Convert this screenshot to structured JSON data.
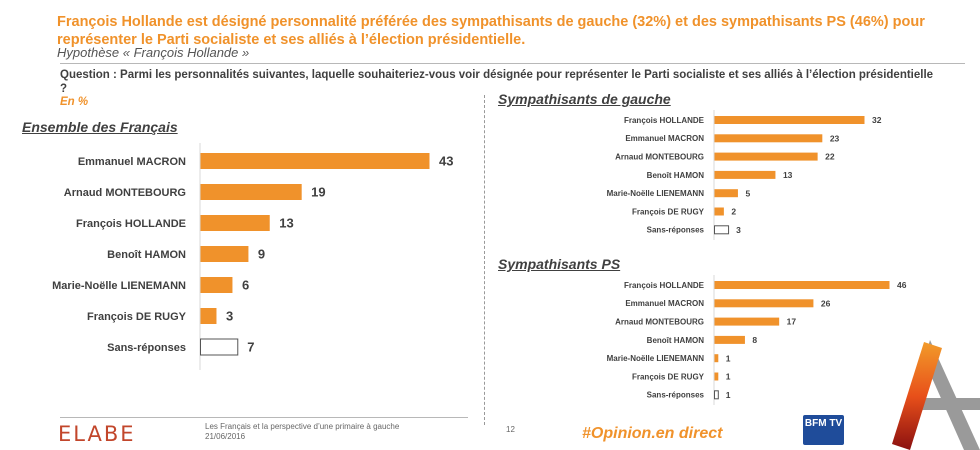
{
  "header": {
    "headline": "François Hollande est désigné personnalité préférée des sympathisants de gauche (32%) et des sympathisants PS (46%) pour représenter le Parti socialiste et ses alliés à l’élection présidentielle.",
    "subtitle": "Hypothèse « François Hollande »",
    "question": "Question : Parmi les personnalités suivantes, laquelle souhaiteriez-vous voir désignée pour représenter le Parti socialiste et ses alliés à l’élection présidentielle ?",
    "unit": "En %"
  },
  "colors": {
    "accent": "#f0922b",
    "text": "#404040",
    "empty_bar": "#ffffff"
  },
  "chart_data": [
    {
      "type": "bar",
      "orientation": "horizontal",
      "title": "Ensemble des Français",
      "categories": [
        "Emmanuel MACRON",
        "Arnaud MONTEBOURG",
        "François HOLLANDE",
        "Benoît HAMON",
        "Marie-Noëlle LIENEMANN",
        "François DE RUGY",
        "Sans-réponses"
      ],
      "values": [
        43,
        19,
        13,
        9,
        6,
        3,
        7
      ],
      "unit": "%"
    },
    {
      "type": "bar",
      "orientation": "horizontal",
      "title": "Sympathisants de gauche",
      "categories": [
        "François HOLLANDE",
        "Emmanuel MACRON",
        "Arnaud MONTEBOURG",
        "Benoît HAMON",
        "Marie-Noëlle LIENEMANN",
        "François DE RUGY",
        "Sans-réponses"
      ],
      "values": [
        32,
        23,
        22,
        13,
        5,
        2,
        3
      ],
      "unit": "%"
    },
    {
      "type": "bar",
      "orientation": "horizontal",
      "title": "Sympathisants PS",
      "categories": [
        "François HOLLANDE",
        "Emmanuel MACRON",
        "Arnaud MONTEBOURG",
        "Benoît HAMON",
        "Marie-Noëlle LIENEMANN",
        "François DE RUGY",
        "Sans-réponses"
      ],
      "values": [
        46,
        26,
        17,
        8,
        1,
        1,
        1
      ],
      "unit": "%"
    }
  ],
  "footer": {
    "logo": "ELABE",
    "study_title": "Les Français et la perspective d’une primaire à gauche",
    "date": "21/06/2016",
    "page_number": "12",
    "hashtag": "#Opinion.en direct",
    "bfm_logo": "BFM TV"
  }
}
